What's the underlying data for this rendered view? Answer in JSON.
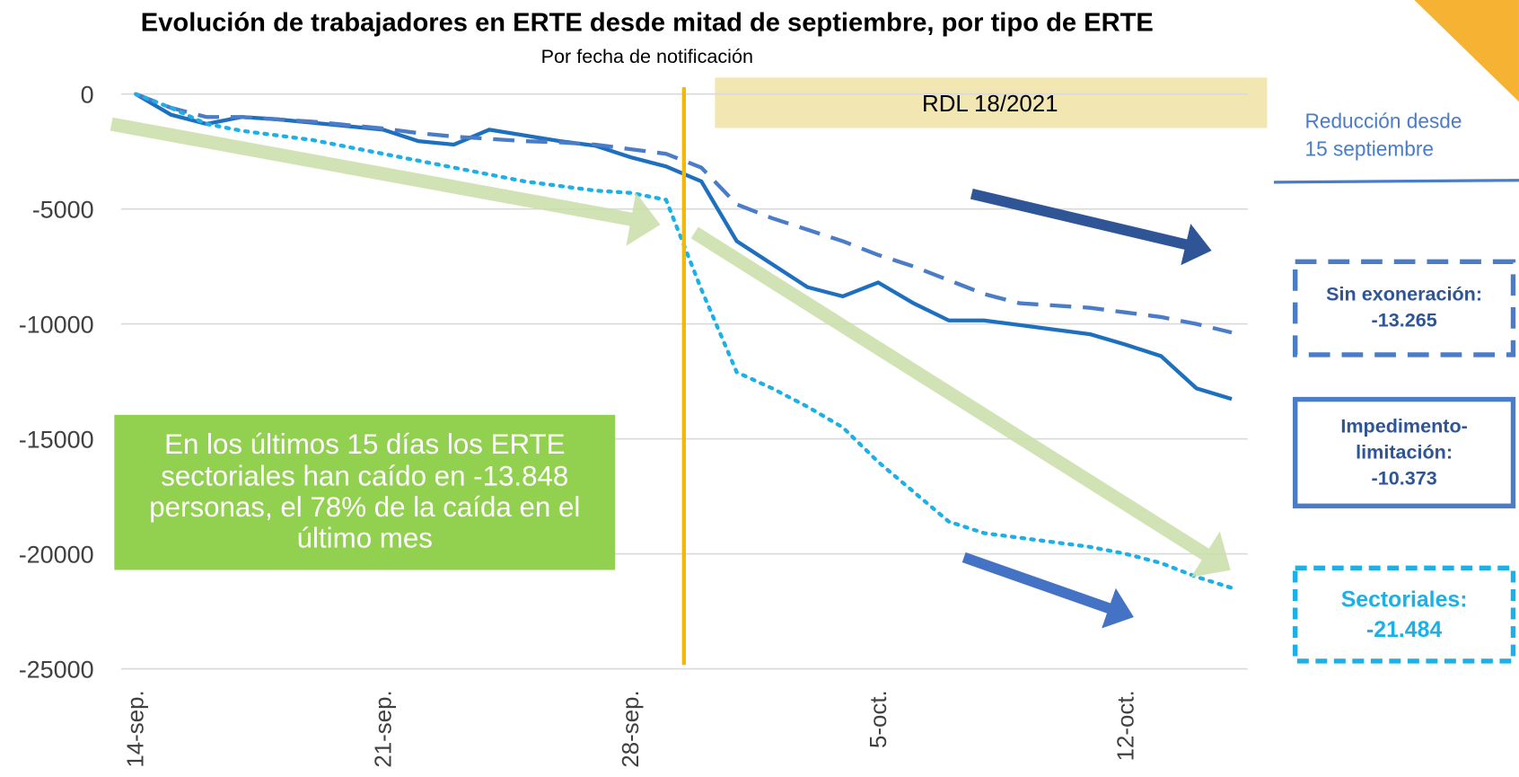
{
  "chart_data": {
    "type": "line",
    "title": "Evolución de trabajadores en ERTE desde mitad de septiembre, por tipo de ERTE",
    "subtitle": "Por fecha de notificación",
    "categories": [
      "14-sep.",
      null,
      null,
      null,
      null,
      null,
      null,
      "21-sep.",
      null,
      null,
      null,
      null,
      null,
      null,
      "28-sep.",
      null,
      null,
      null,
      null,
      null,
      null,
      "5-oct.",
      null,
      null,
      null,
      null,
      null,
      null,
      "12-oct.",
      null,
      null,
      null
    ],
    "series": [
      {
        "name": "Sin exoneración:",
        "end_label": "-13.265",
        "color": "#1f6fbf",
        "style": "solid",
        "values": [
          0,
          -900,
          -1300,
          -1000,
          -1100,
          -1250,
          -1400,
          -1550,
          -2050,
          -2200,
          -1550,
          -1800,
          -2050,
          -2250,
          -2750,
          -3150,
          -3800,
          -6400,
          -7400,
          -8400,
          -8800,
          -8200,
          -9100,
          -9850,
          -9850,
          -10050,
          -10250,
          -10450,
          -10900,
          -11400,
          -12800,
          -13265
        ]
      },
      {
        "name": "Impedimento-limitación:",
        "end_label": "-10.373",
        "color": "#4a7cc7",
        "style": "dashed",
        "values": [
          0,
          -600,
          -1000,
          -1000,
          -1100,
          -1200,
          -1350,
          -1500,
          -1700,
          -1850,
          -1950,
          -2050,
          -2100,
          -2200,
          -2400,
          -2600,
          -3200,
          -4800,
          -5400,
          -5900,
          -6400,
          -7000,
          -7500,
          -8100,
          -8700,
          -9100,
          -9200,
          -9300,
          -9500,
          -9700,
          -10000,
          -10373
        ]
      },
      {
        "name": "Sectoriales:",
        "end_label": "-21.484",
        "color": "#1cb0e6",
        "style": "dotted",
        "values": [
          0,
          -600,
          -1300,
          -1600,
          -1800,
          -2000,
          -2300,
          -2600,
          -2900,
          -3200,
          -3500,
          -3800,
          -4000,
          -4200,
          -4300,
          -4600,
          -8500,
          -12100,
          -12800,
          -13600,
          -14500,
          -16000,
          -17300,
          -18600,
          -19100,
          -19300,
          -19500,
          -19700,
          -20000,
          -20400,
          -21000,
          -21484
        ]
      }
    ],
    "ylim": [
      -25000,
      0
    ],
    "yticks": [
      0,
      -5000,
      -10000,
      -15000,
      -20000,
      -25000
    ],
    "grid": true,
    "rdl_label": "RDL 18/2021",
    "annotation": "En los últimos 15 días los ERTE sectoriales han caído en -13.848 personas, el 78% de la caída en el último mes",
    "side_note": [
      "Reducción desde",
      "15 septiembre"
    ]
  }
}
